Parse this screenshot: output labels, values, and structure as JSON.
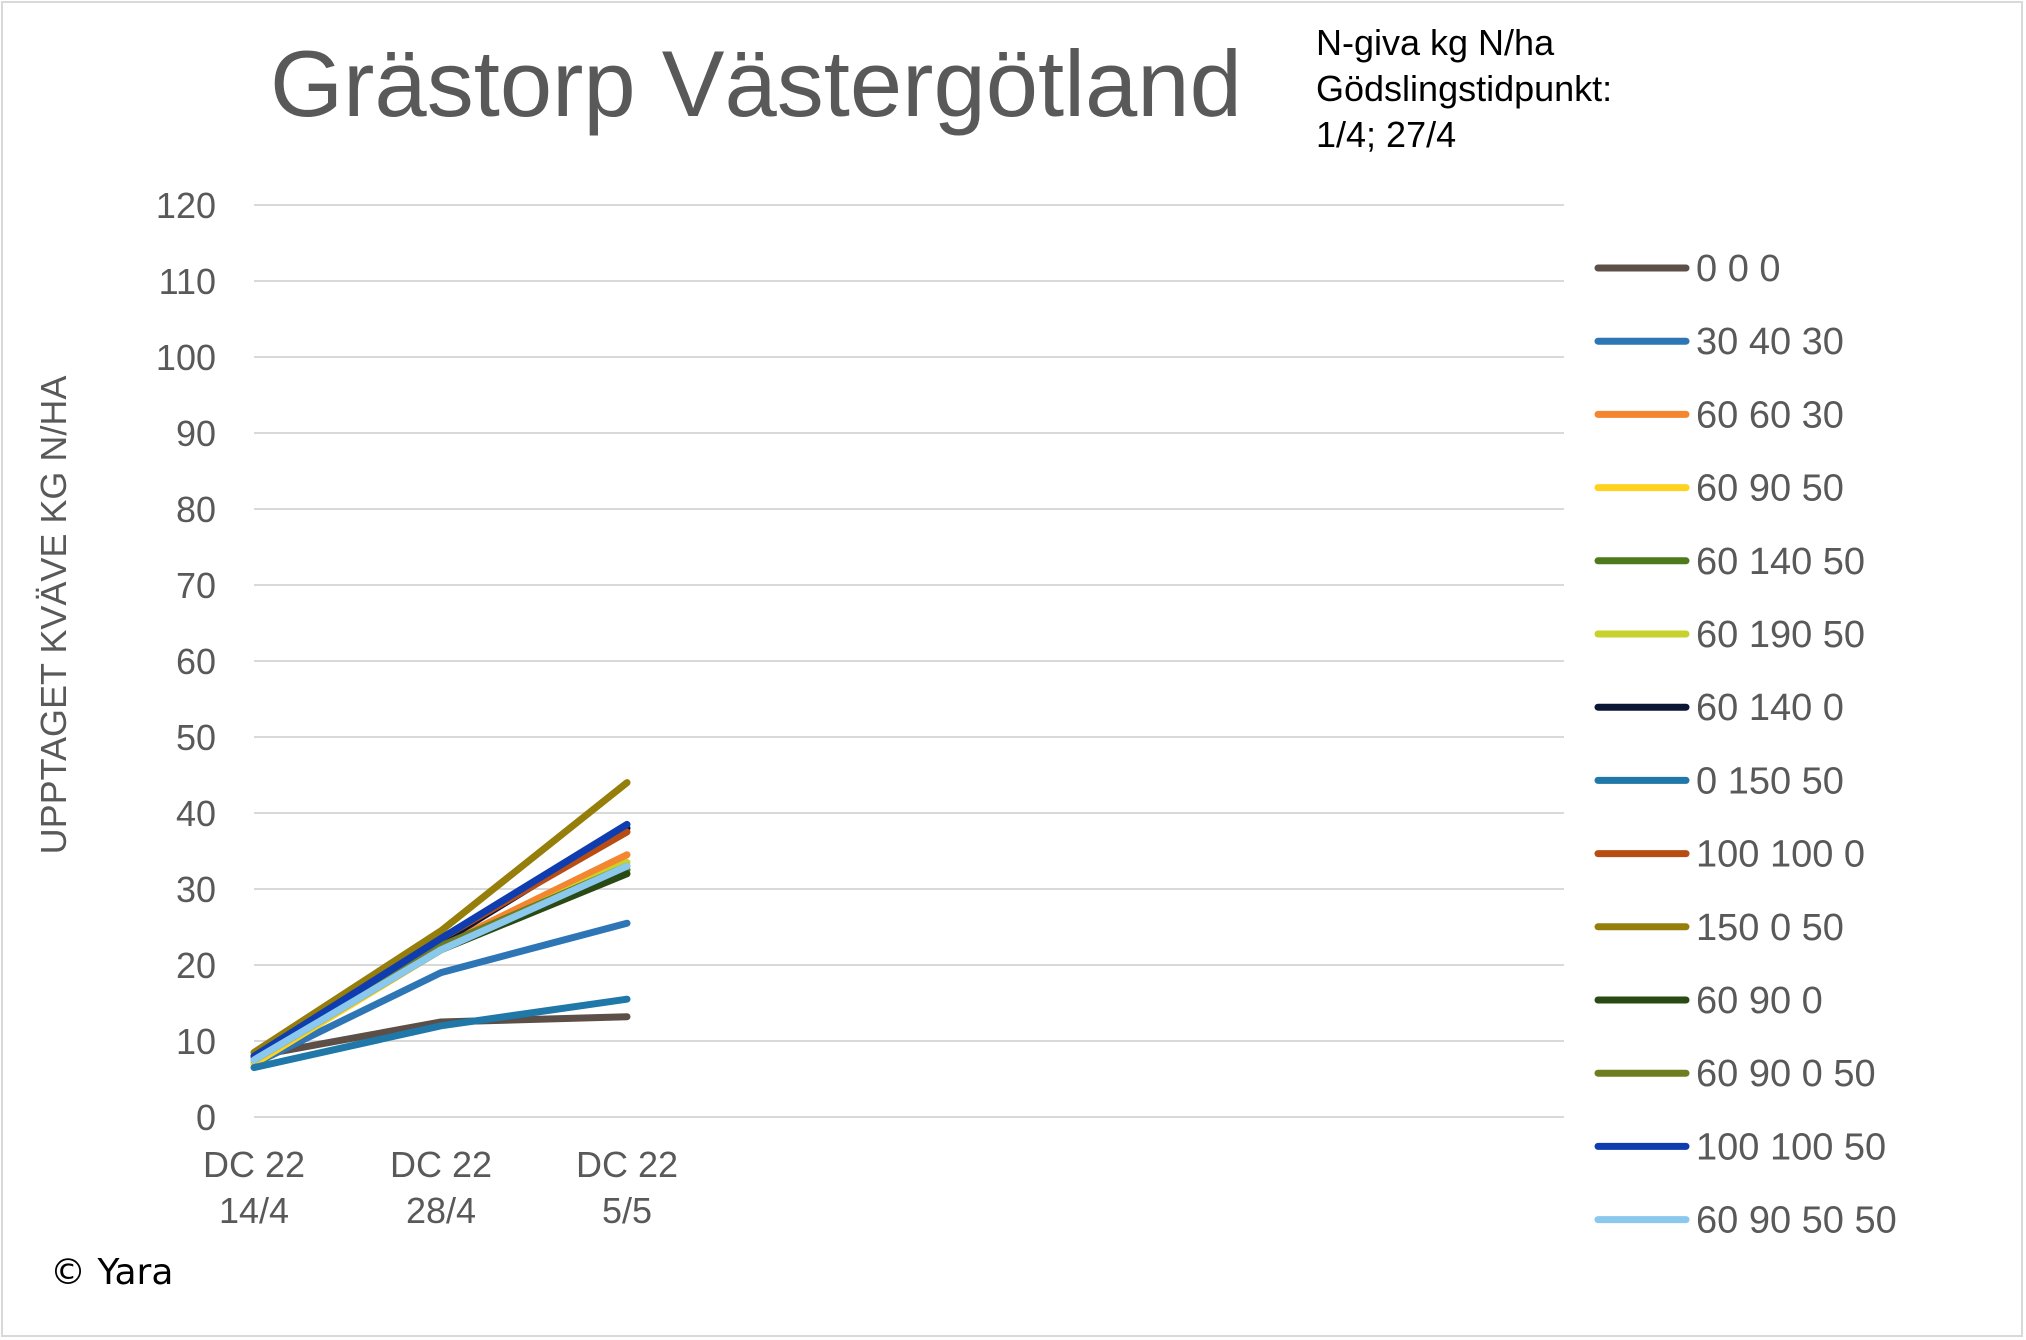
{
  "chart_data": {
    "type": "line",
    "title": "Grästorp Västergötland",
    "subtitle": [
      "N-giva kg N/ha",
      "Gödslingstidpunkt:",
      "1/4; 27/4"
    ],
    "xlabel": "",
    "ylabel": "UPPTAGET KVÄVE KG N/HA",
    "ylim": [
      0,
      120
    ],
    "yticks": [
      "0",
      "10",
      "20",
      "30",
      "40",
      "50",
      "60",
      "70",
      "80",
      "90",
      "100",
      "110",
      "120"
    ],
    "categories": [
      [
        "DC 22",
        "14/4"
      ],
      [
        "DC 22",
        "28/4"
      ],
      [
        "DC 22",
        "5/5"
      ]
    ],
    "grid": "horizontal",
    "legend_position": "right",
    "series": [
      {
        "name": "0 0 0",
        "color": "#5b4f47",
        "values": [
          8.0,
          12.5,
          13.2
        ]
      },
      {
        "name": "30 40 30",
        "color": "#2e75b6",
        "values": [
          7.0,
          19.0,
          25.5
        ]
      },
      {
        "name": "60 60 30",
        "color": "#f4862f",
        "values": [
          7.5,
          22.5,
          34.5
        ]
      },
      {
        "name": "60 90 50",
        "color": "#ffd21f",
        "values": [
          7.0,
          22.0,
          33.0
        ]
      },
      {
        "name": "60 140 50",
        "color": "#4d7a1b",
        "values": [
          7.5,
          22.0,
          32.5
        ]
      },
      {
        "name": "60 190 50",
        "color": "#c7d22c",
        "values": [
          7.5,
          22.0,
          33.5
        ]
      },
      {
        "name": "60 140 0",
        "color": "#0b1635",
        "values": [
          8.0,
          23.0,
          38.0
        ]
      },
      {
        "name": "0 150 50",
        "color": "#1f78a8",
        "values": [
          6.5,
          12.0,
          15.5
        ]
      },
      {
        "name": "100 100 0",
        "color": "#b74d14",
        "values": [
          8.0,
          23.5,
          37.5
        ]
      },
      {
        "name": "150 0 50",
        "color": "#957e0a",
        "values": [
          8.5,
          24.5,
          44.0
        ]
      },
      {
        "name": "60 90 0",
        "color": "#294a14",
        "values": [
          7.5,
          22.0,
          32.0
        ]
      },
      {
        "name": "60 90 0 50",
        "color": "#6e7d1f",
        "values": [
          7.5,
          22.5,
          33.0
        ]
      },
      {
        "name": "100 100 50",
        "color": "#0f3db0",
        "values": [
          8.0,
          23.5,
          38.5
        ]
      },
      {
        "name": "60 90 50 50",
        "color": "#8bc8ee",
        "values": [
          7.5,
          22.0,
          33.0
        ]
      }
    ]
  },
  "footer": {
    "copyright": "© Yara"
  }
}
